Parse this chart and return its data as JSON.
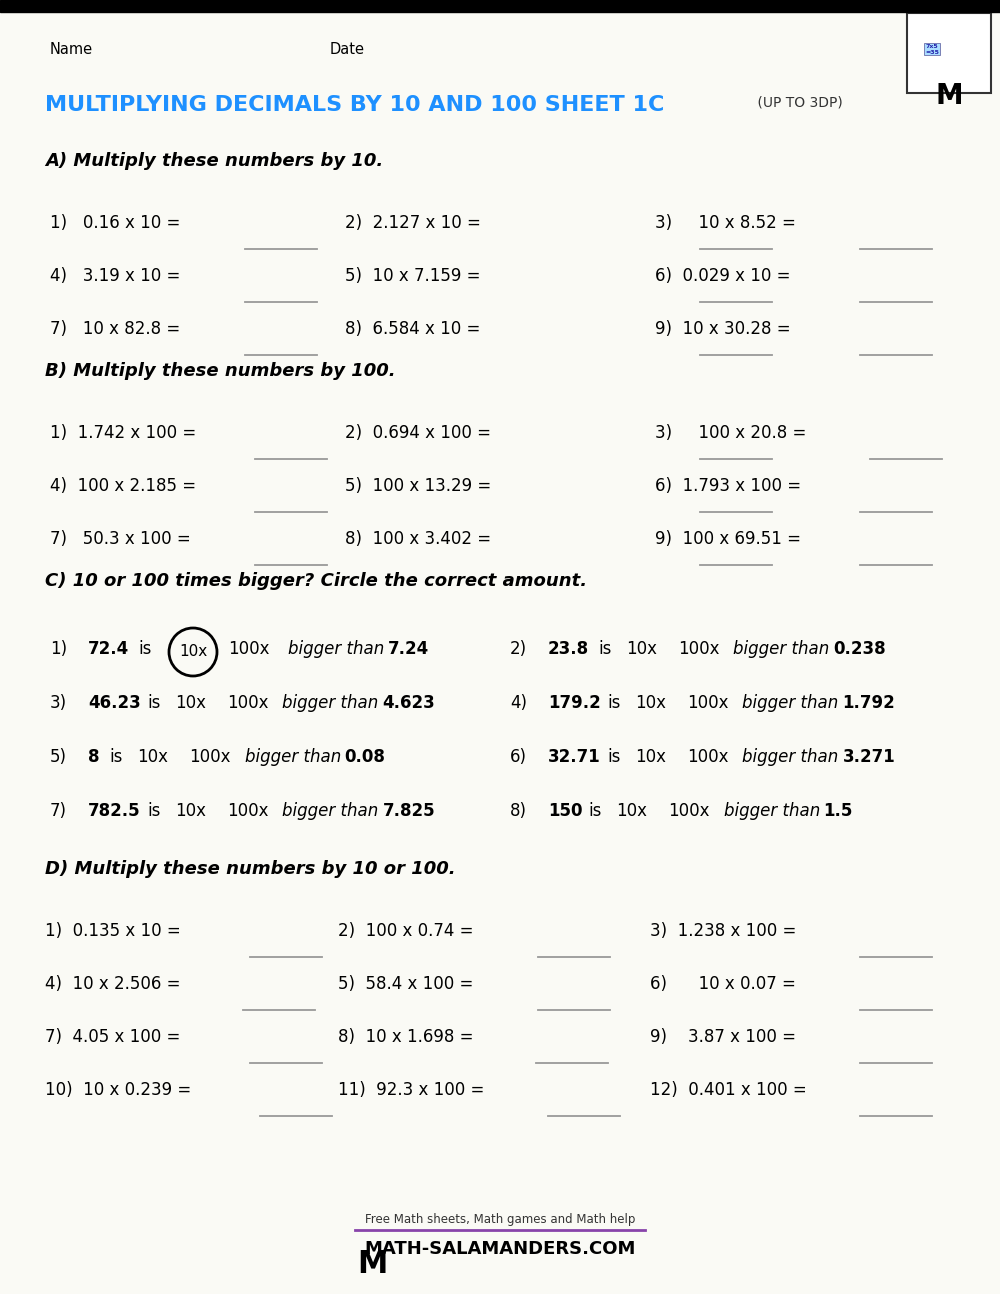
{
  "title_main": "MULTIPLYING DECIMALS BY 10 AND 100 SHEET 1C",
  "title_sub": " (UP TO 3DP)",
  "title_color": "#1E90FF",
  "bg_color": "#FAFAF5",
  "header_name": "Name",
  "header_date": "Date",
  "section_A_header": "A) Multiply these numbers by 10.",
  "section_A": [
    [
      "1)   0.16 x 10 =",
      "2)  2.127 x 10 =",
      "3)     10 x 8.52 ="
    ],
    [
      "4)   3.19 x 10 =",
      "5)  10 x 7.159 =",
      "6)  0.029 x 10 ="
    ],
    [
      "7)   10 x 82.8 =",
      "8)  6.584 x 10 =",
      "9)  10 x 30.28 ="
    ]
  ],
  "section_A_line_offsets": [
    [
      1.95,
      3.55,
      2.05
    ],
    [
      1.95,
      3.55,
      2.05
    ],
    [
      1.95,
      3.55,
      2.05
    ]
  ],
  "section_B_header": "B) Multiply these numbers by 100.",
  "section_B": [
    [
      "1)  1.742 x 100 =",
      "2)  0.694 x 100 =",
      "3)     100 x 20.8 ="
    ],
    [
      "4)  100 x 2.185 =",
      "5)  100 x 13.29 =",
      "6)  1.793 x 100 ="
    ],
    [
      "7)   50.3 x 100 =",
      "8)  100 x 3.402 =",
      "9)  100 x 69.51 ="
    ]
  ],
  "section_B_line_offsets": [
    [
      2.05,
      3.55,
      2.15
    ],
    [
      2.05,
      3.55,
      2.05
    ],
    [
      2.05,
      3.55,
      2.05
    ]
  ],
  "section_C_header": "C) 10 or 100 times bigger? Circle the correct amount.",
  "section_C_left": [
    {
      "num": "1)",
      "bold": "72.4",
      "circled": true,
      "ans": "7.24"
    },
    {
      "num": "3)",
      "bold": "46.23",
      "circled": false,
      "ans": "4.623"
    },
    {
      "num": "5)",
      "bold": "8",
      "circled": false,
      "ans": "0.08"
    },
    {
      "num": "7)",
      "bold": "782.5",
      "circled": false,
      "ans": "7.825"
    }
  ],
  "section_C_right": [
    {
      "num": "2)",
      "bold": "23.8",
      "ans": "0.238"
    },
    {
      "num": "4)",
      "bold": "179.2",
      "ans": "1.792"
    },
    {
      "num": "6)",
      "bold": "32.71",
      "ans": "3.271"
    },
    {
      "num": "8)",
      "bold": "150",
      "ans": "1.5"
    }
  ],
  "section_D_header": "D) Multiply these numbers by 10 or 100.",
  "section_D": [
    [
      "1)  0.135 x 10 =",
      "2)  100 x 0.74 =",
      "3)  1.238 x 100 ="
    ],
    [
      "4)  10 x 2.506 =",
      "5)  58.4 x 100 =",
      "6)      10 x 0.07 ="
    ],
    [
      "7)  4.05 x 100 =",
      "8)  10 x 1.698 =",
      "9)    3.87 x 100 ="
    ],
    [
      "10)  10 x 0.239 =",
      "11)  92.3 x 100 =",
      "12)  0.401 x 100 ="
    ]
  ],
  "line_color": "#999999"
}
